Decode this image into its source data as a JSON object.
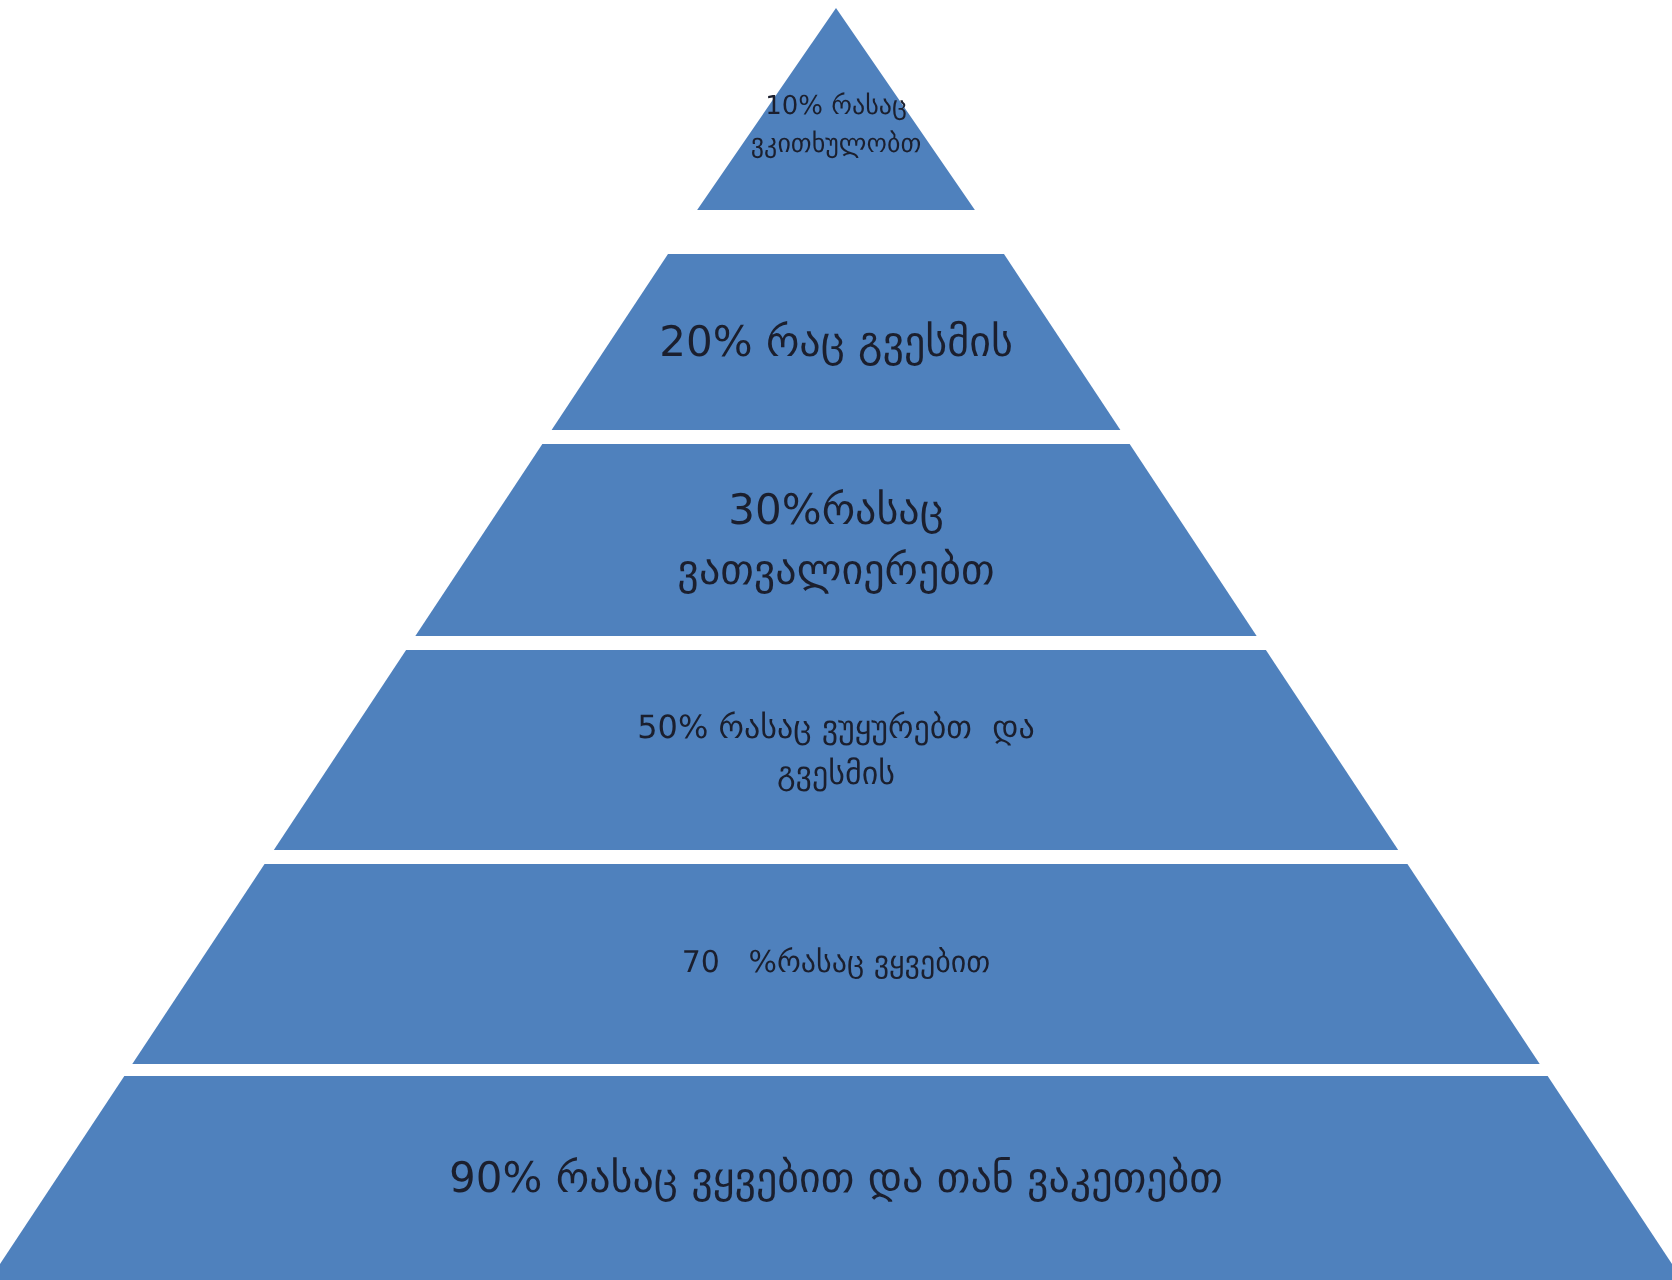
{
  "chart_data": {
    "type": "other",
    "categories": [
      "% რასაც ვკითხულობთ",
      "% რაც გვესმის",
      "%რასაც ვათვალიერებთ",
      "% რასაც ვუყურებთ  და გვესმის",
      "   %რასაც ვყვებით",
      "% რასაც ვყვებით და თან ვაკეთებთ"
    ],
    "values": [
      10,
      20,
      30,
      50,
      70,
      90
    ],
    "data_labels": true,
    "color": "#4f81bd"
  }
}
